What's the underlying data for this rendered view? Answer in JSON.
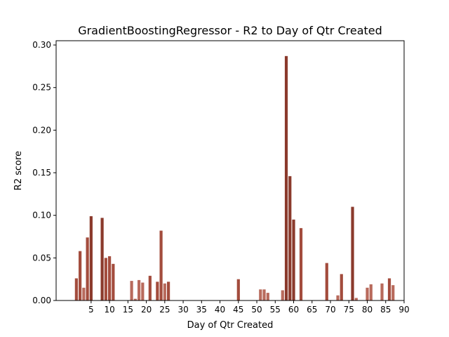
{
  "chart_data": {
    "type": "bar",
    "title": "GradientBoostingRegressor - R2 to Day of Qtr Created",
    "xlabel": "Day of Qtr Created",
    "ylabel": "R2 score",
    "xlim": [
      -4.5,
      90
    ],
    "ylim": [
      0,
      0.305
    ],
    "xticks": [
      5,
      10,
      15,
      20,
      25,
      30,
      35,
      40,
      45,
      50,
      55,
      60,
      65,
      70,
      75,
      80,
      85,
      90
    ],
    "yticks": [
      0.0,
      0.05,
      0.1,
      0.15,
      0.2,
      0.25,
      0.3
    ],
    "ytick_labels": [
      "0.00",
      "0.05",
      "0.10",
      "0.15",
      "0.20",
      "0.25",
      "0.30"
    ],
    "bar_width": 0.8,
    "grid": false,
    "colors": {
      "dark": "#8b3a2c",
      "mid": "#a34c3d",
      "light": "#b86a5c"
    },
    "bars": [
      {
        "x": 1,
        "y": 0.026,
        "shade": "mid"
      },
      {
        "x": 2,
        "y": 0.058,
        "shade": "mid"
      },
      {
        "x": 3,
        "y": 0.015,
        "shade": "light"
      },
      {
        "x": 4,
        "y": 0.074,
        "shade": "mid"
      },
      {
        "x": 5,
        "y": 0.099,
        "shade": "dark"
      },
      {
        "x": 8,
        "y": 0.097,
        "shade": "dark"
      },
      {
        "x": 9,
        "y": 0.05,
        "shade": "mid"
      },
      {
        "x": 10,
        "y": 0.052,
        "shade": "mid"
      },
      {
        "x": 11,
        "y": 0.043,
        "shade": "mid"
      },
      {
        "x": 16,
        "y": 0.023,
        "shade": "light"
      },
      {
        "x": 17,
        "y": 0.002,
        "shade": "light"
      },
      {
        "x": 18,
        "y": 0.024,
        "shade": "light"
      },
      {
        "x": 19,
        "y": 0.021,
        "shade": "light"
      },
      {
        "x": 21,
        "y": 0.029,
        "shade": "mid"
      },
      {
        "x": 23,
        "y": 0.022,
        "shade": "mid"
      },
      {
        "x": 24,
        "y": 0.082,
        "shade": "mid"
      },
      {
        "x": 25,
        "y": 0.02,
        "shade": "light"
      },
      {
        "x": 26,
        "y": 0.022,
        "shade": "mid"
      },
      {
        "x": 45,
        "y": 0.025,
        "shade": "mid"
      },
      {
        "x": 51,
        "y": 0.013,
        "shade": "light"
      },
      {
        "x": 52,
        "y": 0.013,
        "shade": "light"
      },
      {
        "x": 53,
        "y": 0.009,
        "shade": "light"
      },
      {
        "x": 57,
        "y": 0.012,
        "shade": "light"
      },
      {
        "x": 58,
        "y": 0.287,
        "shade": "dark"
      },
      {
        "x": 59,
        "y": 0.146,
        "shade": "dark"
      },
      {
        "x": 60,
        "y": 0.095,
        "shade": "dark"
      },
      {
        "x": 62,
        "y": 0.085,
        "shade": "mid"
      },
      {
        "x": 69,
        "y": 0.044,
        "shade": "mid"
      },
      {
        "x": 72,
        "y": 0.006,
        "shade": "light"
      },
      {
        "x": 73,
        "y": 0.031,
        "shade": "mid"
      },
      {
        "x": 76,
        "y": 0.11,
        "shade": "dark"
      },
      {
        "x": 77,
        "y": 0.003,
        "shade": "light"
      },
      {
        "x": 80,
        "y": 0.015,
        "shade": "light"
      },
      {
        "x": 81,
        "y": 0.019,
        "shade": "light"
      },
      {
        "x": 84,
        "y": 0.02,
        "shade": "light"
      },
      {
        "x": 86,
        "y": 0.026,
        "shade": "mid"
      },
      {
        "x": 87,
        "y": 0.018,
        "shade": "light"
      }
    ]
  }
}
